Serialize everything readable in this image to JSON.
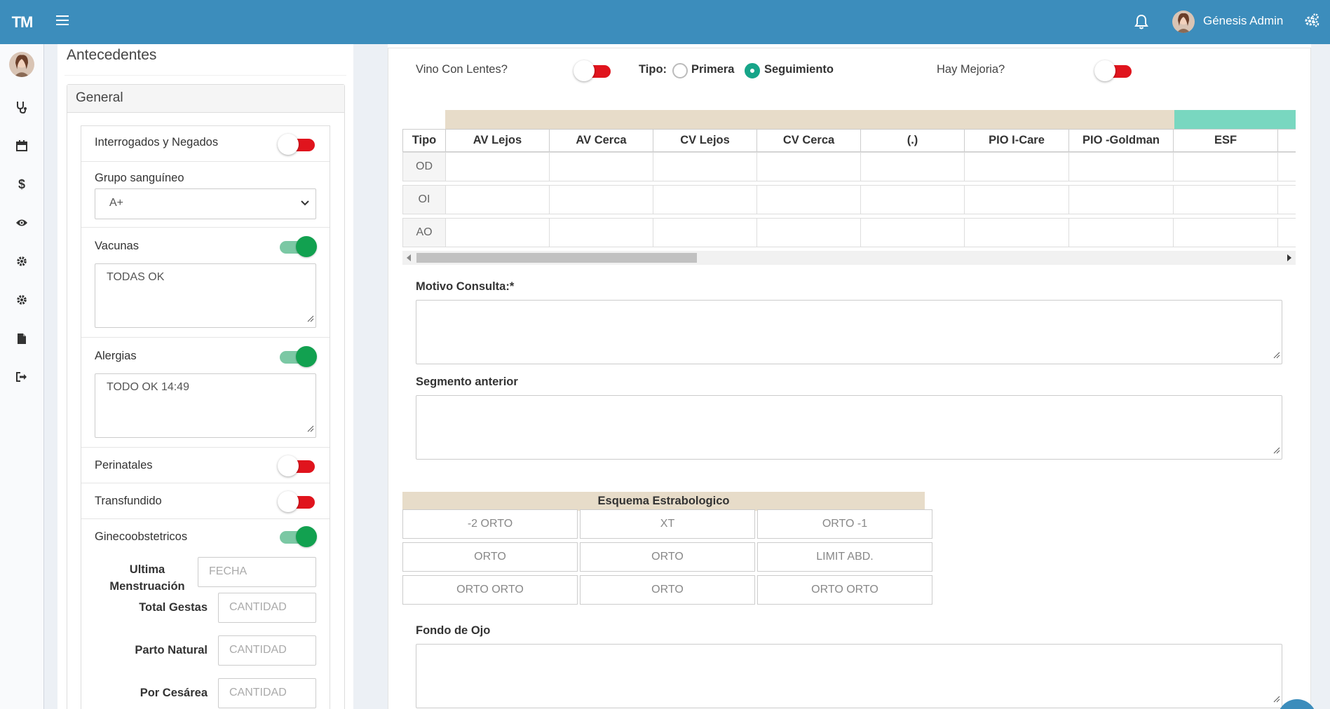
{
  "app": {
    "brand": "TM",
    "user_name": "Génesis Admin"
  },
  "antecedentes": {
    "title": "Antecedentes",
    "panel_title": "General",
    "interrogados": {
      "label": "Interrogados y Negados",
      "enabled": false
    },
    "grupo": {
      "label": "Grupo sanguíneo",
      "value": "A+"
    },
    "vacunas": {
      "label": "Vacunas",
      "enabled": true,
      "text": "TODAS OK"
    },
    "alergias": {
      "label": "Alergias",
      "enabled": true,
      "text": "TODO OK 14:49"
    },
    "perinatales": {
      "label": "Perinatales",
      "enabled": false
    },
    "transfundido": {
      "label": "Transfundido",
      "enabled": false
    },
    "gineco": {
      "label": "Ginecoobstetricos",
      "enabled": true
    },
    "ultima_l1": "Ultima",
    "ultima_l2": "Menstruación",
    "ultima_placeholder": "FECHA",
    "total_gestas": "Total Gestas",
    "total_gestas_placeholder": "CANTIDAD",
    "parto_natural": "Parto Natural",
    "parto_natural_placeholder": "CANTIDAD",
    "por_cesarea": "Por Cesárea",
    "por_cesarea_placeholder": "CANTIDAD"
  },
  "consulta": {
    "vino_lentes": {
      "label": "Vino Con Lentes?",
      "enabled": false
    },
    "tipo": {
      "label": "Tipo:",
      "options": [
        "Primera",
        "Seguimiento"
      ],
      "selected": "Seguimiento"
    },
    "mejoria": {
      "label": "Hay Mejoria?",
      "enabled": false
    },
    "table": {
      "columns": [
        "Tipo",
        "AV Lejos",
        "AV Cerca",
        "CV Lejos",
        "CV Cerca",
        "(.)",
        "PIO I-Care",
        "PIO -Goldman",
        "ESF"
      ],
      "rows": [
        "OD",
        "OI",
        "AO"
      ]
    },
    "motivo_label": "Motivo Consulta:*",
    "segmento_label": "Segmento anterior",
    "esquema": {
      "title": "Esquema Estrabologico",
      "cells": [
        [
          "-2 ORTO",
          "XT",
          "ORTO -1"
        ],
        [
          "ORTO",
          "ORTO",
          "LIMIT ABD."
        ],
        [
          "ORTO ORTO",
          "ORTO",
          "ORTO ORTO"
        ]
      ]
    },
    "fondo_label": "Fondo de Ojo"
  },
  "colors": {
    "header": "#3c8dbc",
    "toggle_off": "#e0141d",
    "toggle_on": "#12a150",
    "band_beige": "#e7dcc9",
    "band_teal": "#79d7c0"
  }
}
